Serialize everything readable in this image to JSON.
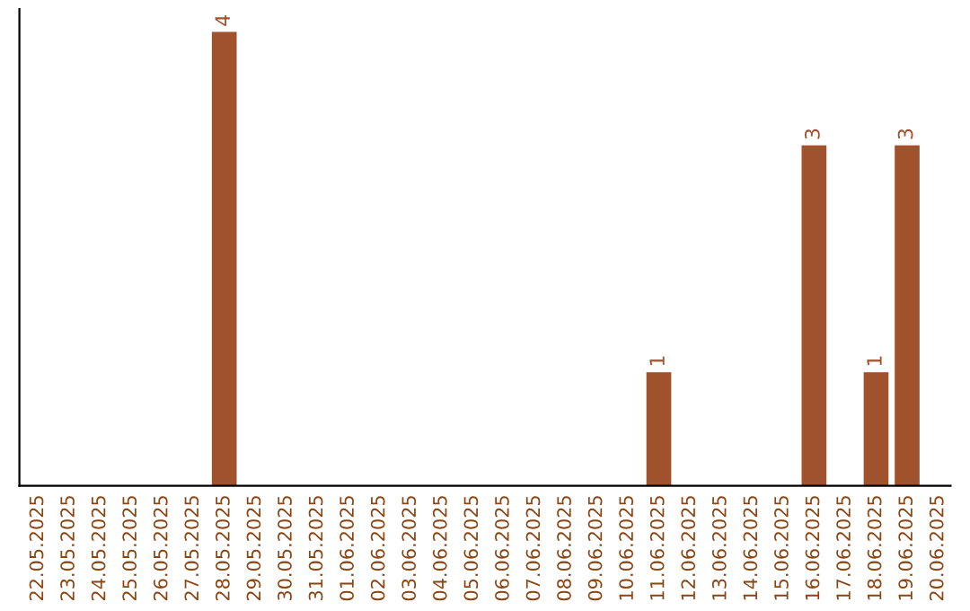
{
  "chart_data": {
    "type": "bar",
    "categories": [
      "22.05.2025",
      "23.05.2025",
      "24.05.2025",
      "25.05.2025",
      "26.05.2025",
      "27.05.2025",
      "28.05.2025",
      "29.05.2025",
      "30.05.2025",
      "31.05.2025",
      "01.06.2025",
      "02.06.2025",
      "03.06.2025",
      "04.06.2025",
      "05.06.2025",
      "06.06.2025",
      "07.06.2025",
      "08.06.2025",
      "09.06.2025",
      "10.06.2025",
      "11.06.2025",
      "12.06.2025",
      "13.06.2025",
      "14.06.2025",
      "15.06.2025",
      "16.06.2025",
      "17.06.2025",
      "18.06.2025",
      "19.06.2025",
      "20.06.2025"
    ],
    "values": [
      0,
      0,
      0,
      0,
      0,
      0,
      4,
      0,
      0,
      0,
      0,
      0,
      0,
      0,
      0,
      0,
      0,
      0,
      0,
      0,
      1,
      0,
      0,
      0,
      0,
      3,
      0,
      1,
      3,
      0
    ],
    "color": "#a0522d",
    "value_labels": [
      null,
      null,
      null,
      null,
      null,
      null,
      "4",
      null,
      null,
      null,
      null,
      null,
      null,
      null,
      null,
      null,
      null,
      null,
      null,
      null,
      "1",
      null,
      null,
      null,
      null,
      "3",
      null,
      "1",
      "3",
      null
    ],
    "tick_labels": "x",
    "grid": false,
    "legend": false
  }
}
